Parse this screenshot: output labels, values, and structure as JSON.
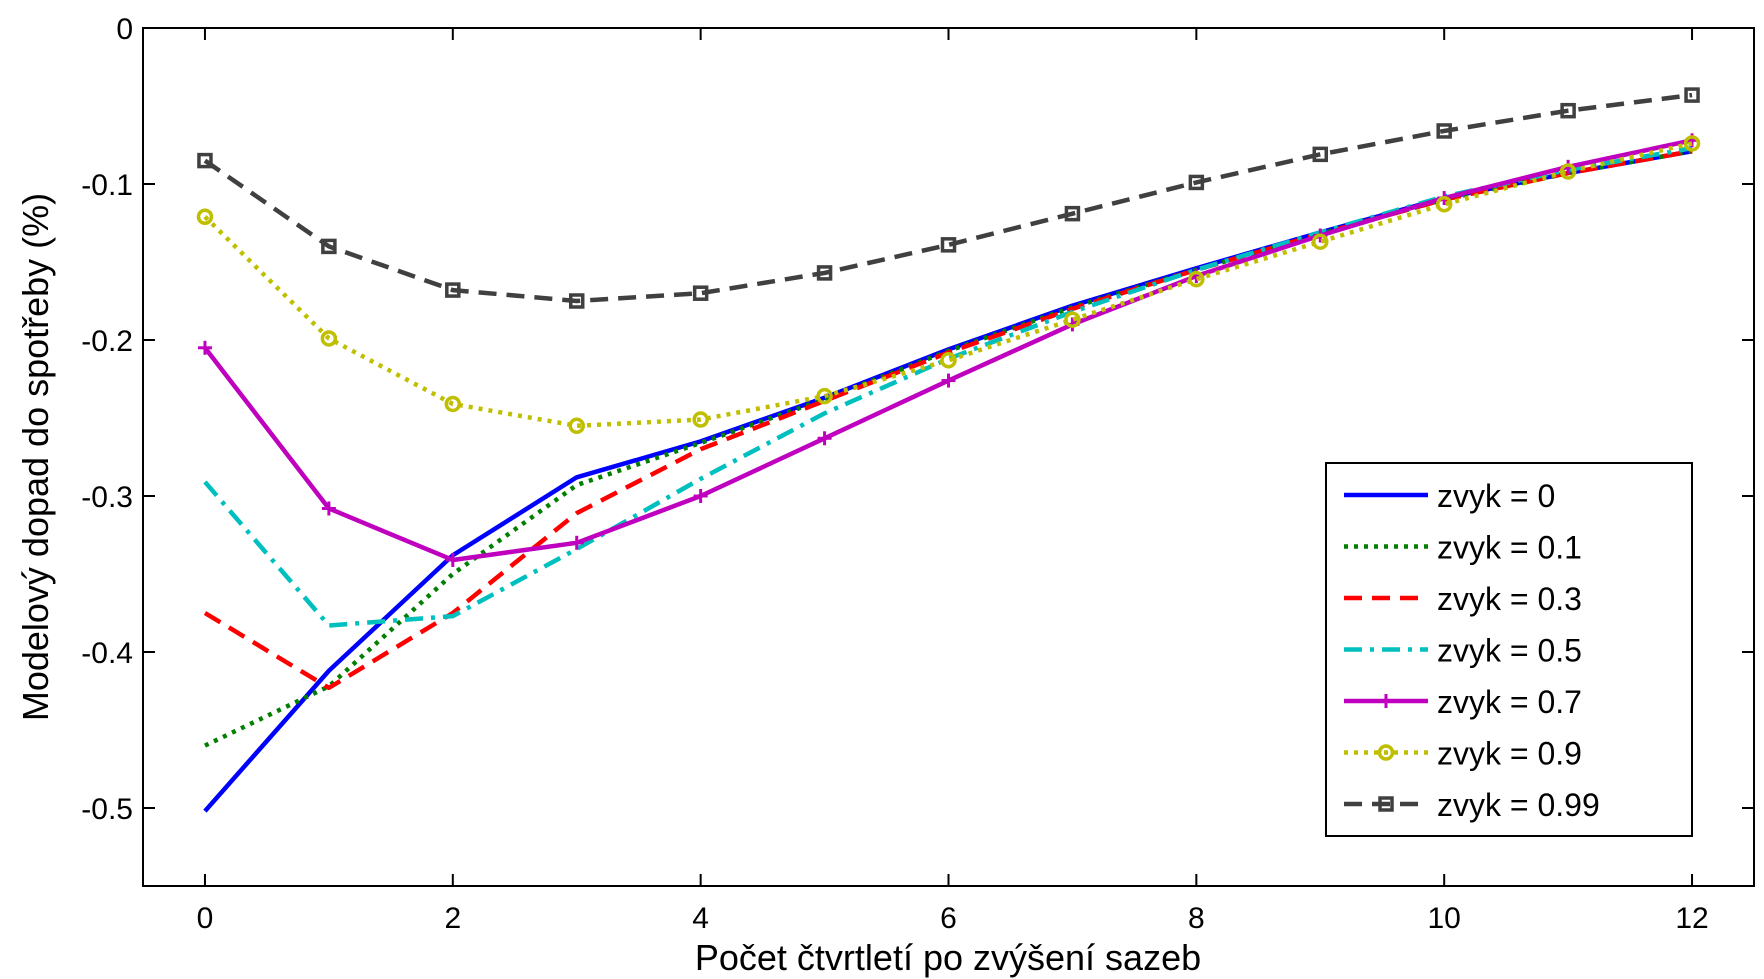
{
  "chart_data": {
    "type": "line",
    "title": "",
    "xlabel": "Počet čtvrtletí po zvýšení sazeb",
    "ylabel": "Modelový dopad do spotřeby (%)",
    "xlim": [
      -0.5,
      12.5
    ],
    "ylim": [
      -0.55,
      0
    ],
    "xticks": [
      0,
      2,
      4,
      6,
      8,
      10,
      12
    ],
    "xtick_labels": [
      "0",
      "2",
      "4",
      "6",
      "8",
      "10",
      "12"
    ],
    "yticks": [
      0,
      -0.1,
      -0.2,
      -0.3,
      -0.4,
      -0.5
    ],
    "ytick_labels": [
      "0",
      "-0.1",
      "-0.2",
      "-0.3",
      "-0.4",
      "-0.5"
    ],
    "grid": false,
    "legend_position": "bottom-right",
    "x": [
      0,
      1,
      2,
      3,
      4,
      5,
      6,
      7,
      8,
      9,
      10,
      11,
      12
    ],
    "series": [
      {
        "name": "zvyk = 0",
        "color": "#0000ff",
        "dash": "solid",
        "marker": "none",
        "values": [
          -0.502,
          -0.412,
          -0.338,
          -0.288,
          -0.265,
          -0.237,
          -0.206,
          -0.178,
          -0.154,
          -0.131,
          -0.109,
          -0.093,
          -0.079
        ]
      },
      {
        "name": "zvyk = 0.1",
        "color": "#007f00",
        "dash": "dotted",
        "marker": "none",
        "values": [
          -0.46,
          -0.422,
          -0.35,
          -0.293,
          -0.266,
          -0.238,
          -0.207,
          -0.179,
          -0.155,
          -0.132,
          -0.11,
          -0.093,
          -0.079
        ]
      },
      {
        "name": "zvyk = 0.3",
        "color": "#ff0000",
        "dash": "dashed",
        "marker": "none",
        "values": [
          -0.375,
          -0.423,
          -0.375,
          -0.311,
          -0.27,
          -0.239,
          -0.208,
          -0.18,
          -0.155,
          -0.132,
          -0.11,
          -0.093,
          -0.079
        ]
      },
      {
        "name": "zvyk = 0.5",
        "color": "#00bfbf",
        "dash": "dashdot",
        "marker": "none",
        "values": [
          -0.291,
          -0.383,
          -0.377,
          -0.334,
          -0.289,
          -0.247,
          -0.212,
          -0.182,
          -0.155,
          -0.131,
          -0.108,
          -0.091,
          -0.077
        ]
      },
      {
        "name": "zvyk = 0.7",
        "color": "#bf00bf",
        "dash": "solid",
        "marker": "plus",
        "values": [
          -0.205,
          -0.308,
          -0.341,
          -0.33,
          -0.3,
          -0.263,
          -0.226,
          -0.19,
          -0.159,
          -0.133,
          -0.109,
          -0.089,
          -0.072
        ]
      },
      {
        "name": "zvyk = 0.9",
        "color": "#bfbf00",
        "dash": "dotted",
        "marker": "circle",
        "values": [
          -0.121,
          -0.199,
          -0.241,
          -0.255,
          -0.251,
          -0.236,
          -0.213,
          -0.187,
          -0.161,
          -0.137,
          -0.113,
          -0.092,
          -0.074
        ]
      },
      {
        "name": "zvyk = 0.99",
        "color": "#404040",
        "dash": "dashed",
        "marker": "square",
        "values": [
          -0.085,
          -0.14,
          -0.168,
          -0.175,
          -0.17,
          -0.157,
          -0.139,
          -0.119,
          -0.099,
          -0.081,
          -0.066,
          -0.053,
          -0.043
        ]
      }
    ]
  }
}
